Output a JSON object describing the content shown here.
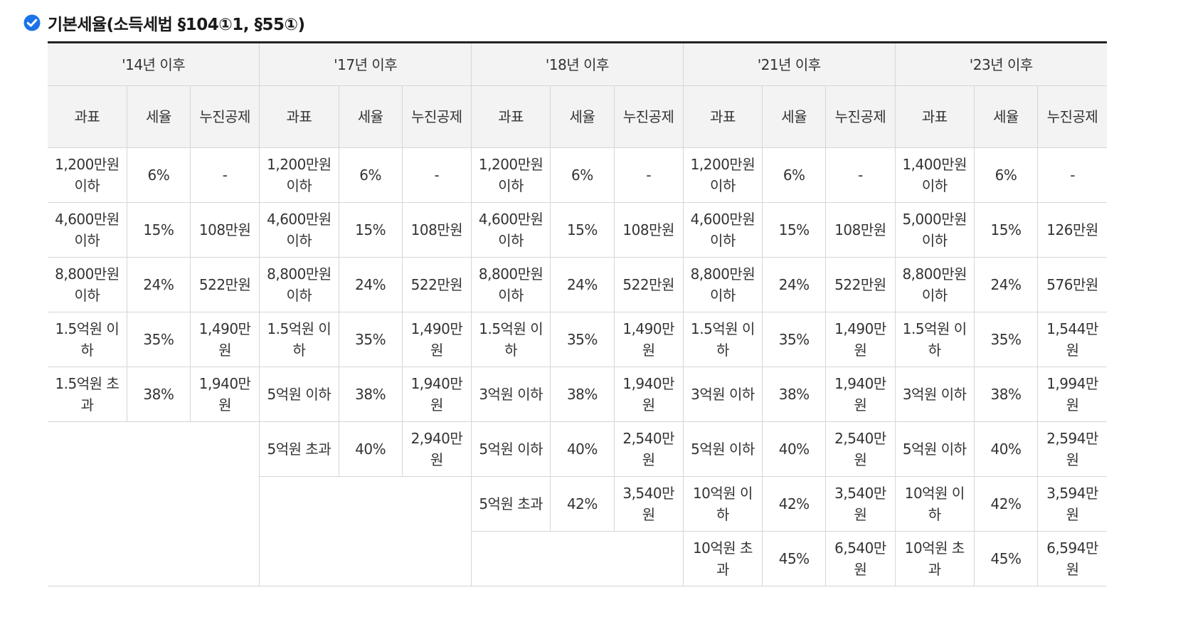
{
  "title": "기본세율(소득세법 §104①1, §55①)",
  "icons": {
    "title_icon": "check-circle-icon",
    "accent": "#1a73e8"
  },
  "periods": [
    "'14년 이후",
    "'17년 이후",
    "'18년 이후",
    "'21년 이후",
    "'23년 이후"
  ],
  "columns": {
    "base": "과표",
    "rate": "세율",
    "deduction": "누진공제"
  },
  "tables": {
    "p14": [
      {
        "base": "1,200만원 이하",
        "rate": "6%",
        "deduction": "-"
      },
      {
        "base": "4,600만원 이하",
        "rate": "15%",
        "deduction": "108만원"
      },
      {
        "base": "8,800만원 이하",
        "rate": "24%",
        "deduction": "522만원"
      },
      {
        "base": "1.5억원 이하",
        "rate": "35%",
        "deduction": "1,490만원"
      },
      {
        "base": "1.5억원 초과",
        "rate": "38%",
        "deduction": "1,940만원"
      }
    ],
    "p17": [
      {
        "base": "1,200만원 이하",
        "rate": "6%",
        "deduction": "-"
      },
      {
        "base": "4,600만원 이하",
        "rate": "15%",
        "deduction": "108만원"
      },
      {
        "base": "8,800만원 이하",
        "rate": "24%",
        "deduction": "522만원"
      },
      {
        "base": "1.5억원 이하",
        "rate": "35%",
        "deduction": "1,490만원"
      },
      {
        "base": "5억원 이하",
        "rate": "38%",
        "deduction": "1,940만원"
      },
      {
        "base": "5억원 초과",
        "rate": "40%",
        "deduction": "2,940만원"
      }
    ],
    "p18": [
      {
        "base": "1,200만원 이하",
        "rate": "6%",
        "deduction": "-"
      },
      {
        "base": "4,600만원 이하",
        "rate": "15%",
        "deduction": "108만원"
      },
      {
        "base": "8,800만원 이하",
        "rate": "24%",
        "deduction": "522만원"
      },
      {
        "base": "1.5억원 이하",
        "rate": "35%",
        "deduction": "1,490만원"
      },
      {
        "base": "3억원 이하",
        "rate": "38%",
        "deduction": "1,940만원"
      },
      {
        "base": "5억원 이하",
        "rate": "40%",
        "deduction": "2,540만원"
      },
      {
        "base": "5억원 초과",
        "rate": "42%",
        "deduction": "3,540만원"
      }
    ],
    "p21": [
      {
        "base": "1,200만원 이하",
        "rate": "6%",
        "deduction": "-"
      },
      {
        "base": "4,600만원 이하",
        "rate": "15%",
        "deduction": "108만원"
      },
      {
        "base": "8,800만원 이하",
        "rate": "24%",
        "deduction": "522만원"
      },
      {
        "base": "1.5억원 이하",
        "rate": "35%",
        "deduction": "1,490만원"
      },
      {
        "base": "3억원 이하",
        "rate": "38%",
        "deduction": "1,940만원"
      },
      {
        "base": "5억원 이하",
        "rate": "40%",
        "deduction": "2,540만원"
      },
      {
        "base": "10억원 이하",
        "rate": "42%",
        "deduction": "3,540만원"
      },
      {
        "base": "10억원 초과",
        "rate": "45%",
        "deduction": "6,540만원"
      }
    ],
    "p23": [
      {
        "base": "1,400만원 이하",
        "rate": "6%",
        "deduction": "-"
      },
      {
        "base": "5,000만원 이하",
        "rate": "15%",
        "deduction": "126만원"
      },
      {
        "base": "8,800만원 이하",
        "rate": "24%",
        "deduction": "576만원"
      },
      {
        "base": "1.5억원 이하",
        "rate": "35%",
        "deduction": "1,544만원"
      },
      {
        "base": "3억원 이하",
        "rate": "38%",
        "deduction": "1,994만원"
      },
      {
        "base": "5억원 이하",
        "rate": "40%",
        "deduction": "2,594만원"
      },
      {
        "base": "10억원 이하",
        "rate": "42%",
        "deduction": "3,594만원"
      },
      {
        "base": "10억원 초과",
        "rate": "45%",
        "deduction": "6,594만원"
      }
    ]
  }
}
